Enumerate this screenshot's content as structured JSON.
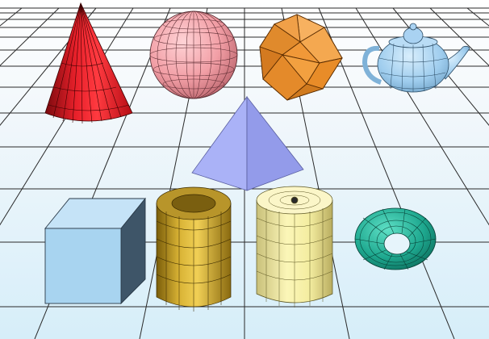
{
  "viewport": {
    "background_top": "#ffffff",
    "background_bottom": "#d9f0fb",
    "grid_color": "#2a2a2a"
  },
  "objects": [
    {
      "name": "cone",
      "color": "#e0141c"
    },
    {
      "name": "geosphere",
      "color": "#f2a3a8"
    },
    {
      "name": "icosahedron",
      "color": "#f29a3a"
    },
    {
      "name": "teapot",
      "color": "#9fd0f0"
    },
    {
      "name": "pyramid",
      "color": "#a6aff5"
    },
    {
      "name": "box",
      "color": "#a8d4f0"
    },
    {
      "name": "tube",
      "color": "#caa430"
    },
    {
      "name": "cylinder",
      "color": "#f4eea0"
    },
    {
      "name": "torus",
      "color": "#1fa58e"
    }
  ]
}
